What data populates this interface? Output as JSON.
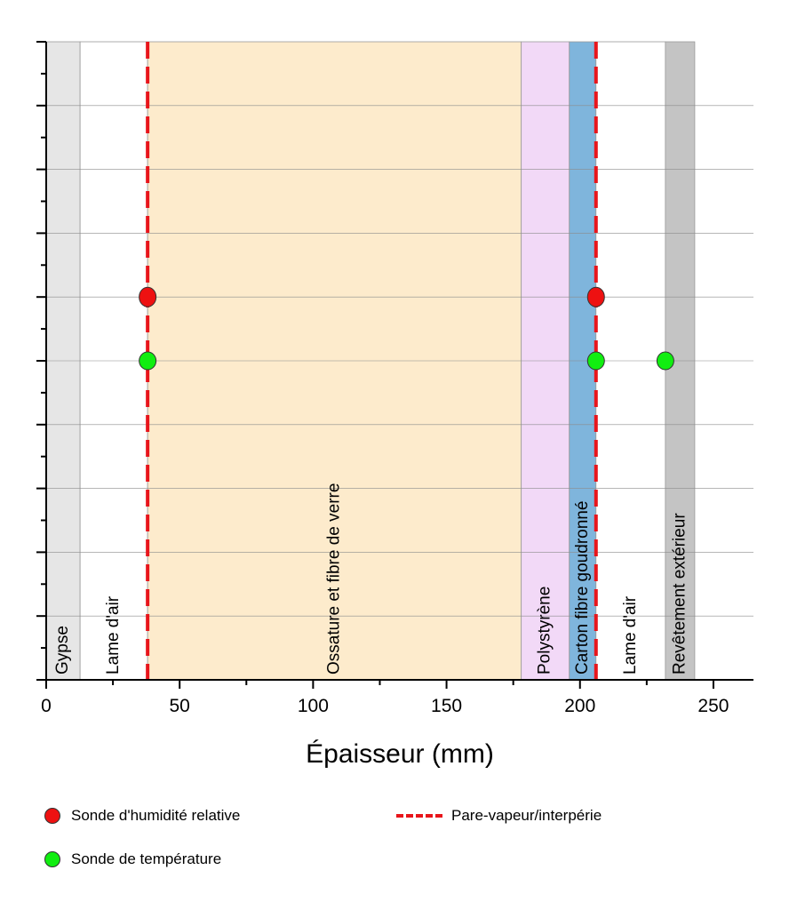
{
  "chart_data": {
    "type": "area",
    "title": "",
    "xlabel": "Épaisseur (mm)",
    "ylabel": "",
    "xlim": [
      0,
      265
    ],
    "x_ticks": [
      0,
      50,
      100,
      150,
      200,
      250
    ],
    "grid": "horizontal",
    "layers": [
      {
        "name": "Gypse",
        "start": 0,
        "end": 12.7,
        "color": "#e6e6e6"
      },
      {
        "name": "Lame d'air",
        "start": 12.7,
        "end": 38,
        "color": "#ffffff"
      },
      {
        "name": "Ossature et fibre de verre",
        "start": 38,
        "end": 178,
        "color": "#fdebcc"
      },
      {
        "name": "Polystyrène",
        "start": 178,
        "end": 196,
        "color": "#f2d9f7"
      },
      {
        "name": "Carton fibre goudronné",
        "start": 196,
        "end": 206,
        "color": "#7fb5dc"
      },
      {
        "name": "Lame d'air",
        "start": 206,
        "end": 232,
        "color": "#ffffff"
      },
      {
        "name": "Revêtement extérieur",
        "start": 232,
        "end": 243,
        "color": "#c4c4c4"
      }
    ],
    "barriers": [
      38,
      206
    ],
    "barrier_color": "#e8151b",
    "humidity_probes": [
      38,
      206
    ],
    "temperature_probes": [
      38,
      206,
      232
    ],
    "humidity_color": "#ee1111",
    "temperature_color": "#11ee11"
  },
  "legend": {
    "humidity": "Sonde d'humidité relative",
    "temperature": "Sonde de température",
    "barrier": "Pare-vapeur/interpérie"
  }
}
